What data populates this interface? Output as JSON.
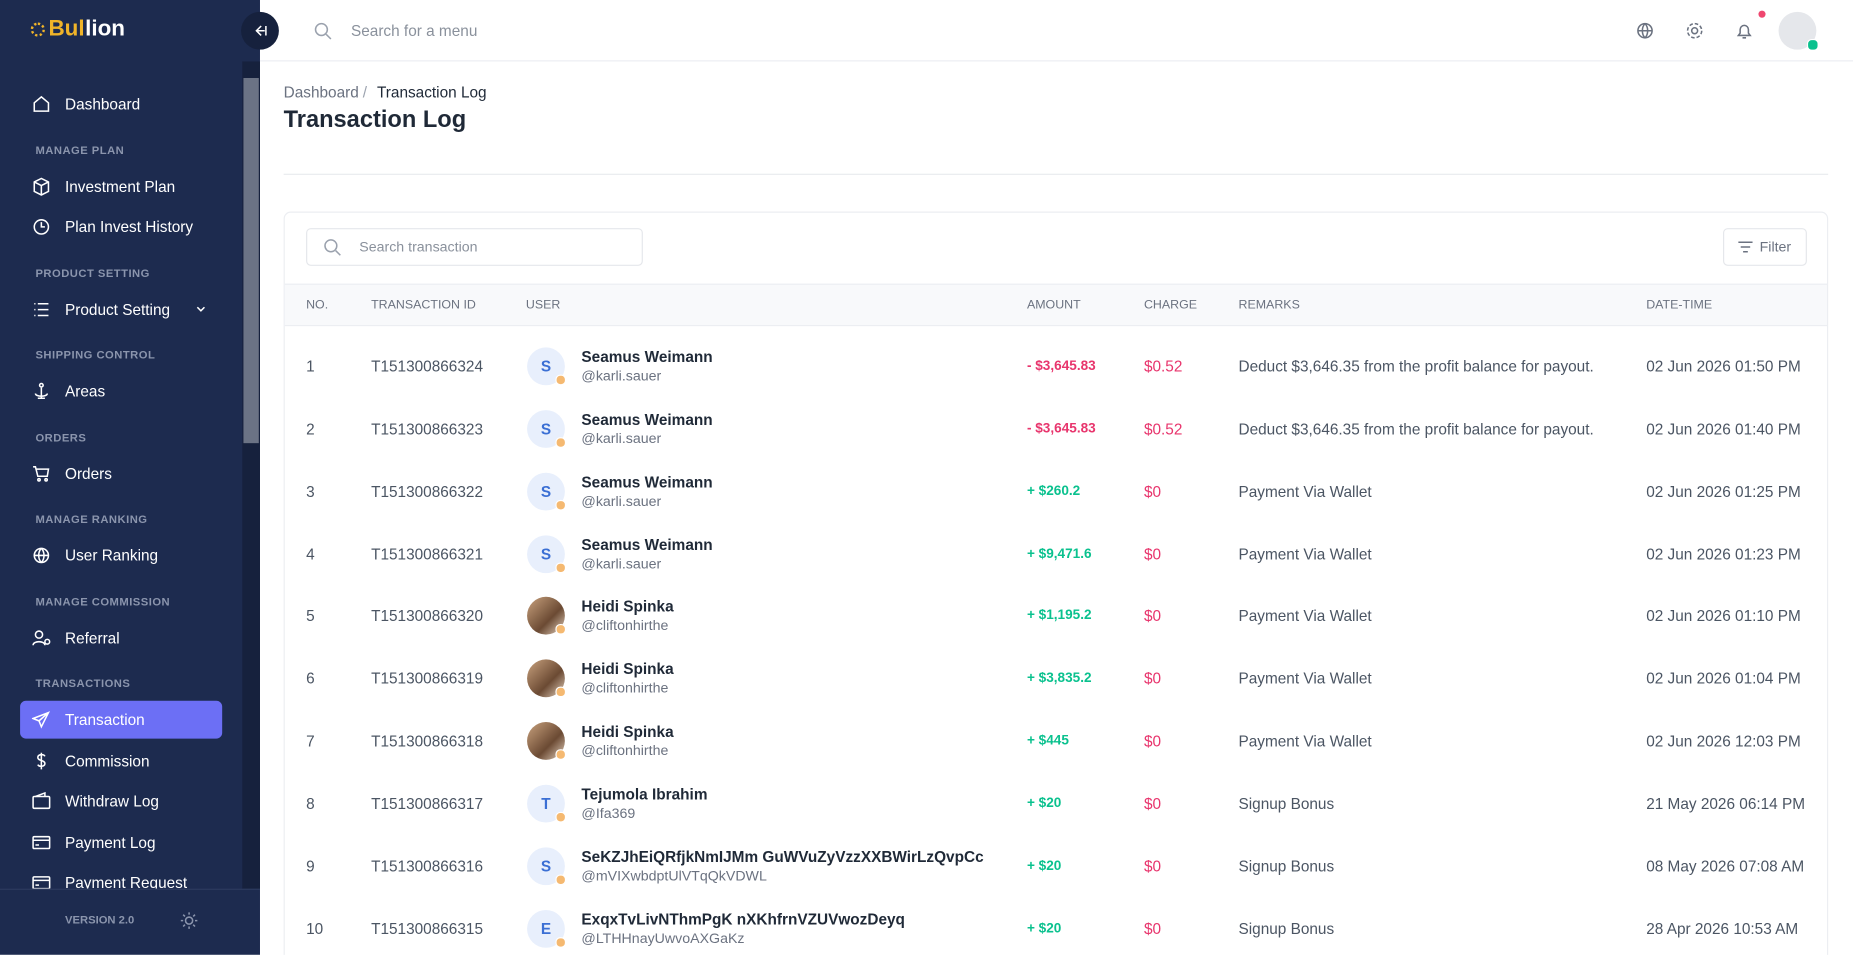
{
  "brand": {
    "gold": "Bul",
    "white": "lion"
  },
  "header": {
    "search": "Search for a menu"
  },
  "sidebar": {
    "entries": [
      {
        "label": "Dashboard"
      },
      {
        "heading": "MANAGE PLAN"
      },
      {
        "label": "Investment Plan"
      },
      {
        "label": "Plan Invest History"
      },
      {
        "heading": "PRODUCT SETTING"
      },
      {
        "label": "Product Setting",
        "expandable": true
      },
      {
        "heading": "SHIPPING CONTROL"
      },
      {
        "label": "Areas"
      },
      {
        "heading": "ORDERS"
      },
      {
        "label": "Orders"
      },
      {
        "heading": "MANAGE RANKING"
      },
      {
        "label": "User Ranking"
      },
      {
        "heading": "MANAGE COMMISSION"
      },
      {
        "label": "Referral"
      },
      {
        "heading": "TRANSACTIONS"
      },
      {
        "label": "Transaction",
        "active": true
      },
      {
        "label": "Commission"
      },
      {
        "label": "Withdraw Log"
      },
      {
        "label": "Payment Log"
      },
      {
        "label": "Payment Request"
      }
    ],
    "version": "VERSION 2.0"
  },
  "breadcrumb": [
    "Dashboard",
    "Transaction Log"
  ],
  "page_title": "Transaction Log",
  "table": {
    "search": "Search transaction",
    "filter": "Filter",
    "columns": [
      "NO.",
      "TRANSACTION ID",
      "USER",
      "AMOUNT",
      "CHARGE",
      "REMARKS",
      "DATE-TIME"
    ],
    "rows": [
      {
        "no": 1,
        "id": "T151300866324",
        "avatar_letter": "S",
        "name": "Seamus Weimann",
        "username": "@karli.sauer",
        "amount": "- $3,645.83",
        "charge": "$0.52",
        "remarks": "Deduct $3,646.35 from the profit balance for payout.",
        "datetime": "02 Jun 2026 01:50 PM"
      },
      {
        "no": 2,
        "id": "T151300866323",
        "avatar_letter": "S",
        "name": "Seamus Weimann",
        "username": "@karli.sauer",
        "amount": "- $3,645.83",
        "charge": "$0.52",
        "remarks": "Deduct $3,646.35 from the profit balance for payout.",
        "datetime": "02 Jun 2026 01:40 PM"
      },
      {
        "no": 3,
        "id": "T151300866322",
        "avatar_letter": "S",
        "name": "Seamus Weimann",
        "username": "@karli.sauer",
        "amount": "+ $260.2",
        "charge": "$0",
        "remarks": "Payment Via Wallet",
        "datetime": "02 Jun 2026 01:25 PM"
      },
      {
        "no": 4,
        "id": "T151300866321",
        "avatar_letter": "S",
        "name": "Seamus Weimann",
        "username": "@karli.sauer",
        "amount": "+ $9,471.6",
        "charge": "$0",
        "remarks": "Payment Via Wallet",
        "datetime": "02 Jun 2026 01:23 PM"
      },
      {
        "no": 5,
        "id": "T151300866320",
        "avatar_photo": true,
        "name": "Heidi Spinka",
        "username": "@cliftonhirthe",
        "amount": "+ $1,195.2",
        "charge": "$0",
        "remarks": "Payment Via Wallet",
        "datetime": "02 Jun 2026 01:10 PM"
      },
      {
        "no": 6,
        "id": "T151300866319",
        "avatar_photo": true,
        "name": "Heidi Spinka",
        "username": "@cliftonhirthe",
        "amount": "+ $3,835.2",
        "charge": "$0",
        "remarks": "Payment Via Wallet",
        "datetime": "02 Jun 2026 01:04 PM"
      },
      {
        "no": 7,
        "id": "T151300866318",
        "avatar_photo": true,
        "name": "Heidi Spinka",
        "username": "@cliftonhirthe",
        "amount": "+ $445",
        "charge": "$0",
        "remarks": "Payment Via Wallet",
        "datetime": "02 Jun 2026 12:03 PM"
      },
      {
        "no": 8,
        "id": "T151300866317",
        "avatar_letter": "T",
        "name": "Tejumola Ibrahim",
        "username": "@Ifa369",
        "amount": "+ $20",
        "charge": "$0",
        "remarks": "Signup Bonus",
        "datetime": "21 May 2026 06:14 PM"
      },
      {
        "no": 9,
        "id": "T151300866316",
        "avatar_letter": "S",
        "name": "SeKZJhEiQRfjkNmIJMm GuWVuZyVzzXXBWirLzQvpCc",
        "username": "@mVIXwbdptUlVTqQkVDWL",
        "amount": "+ $20",
        "charge": "$0",
        "remarks": "Signup Bonus",
        "datetime": "08 May 2026 07:08 AM"
      },
      {
        "no": 10,
        "id": "T151300866315",
        "avatar_letter": "E",
        "name": "ExqxTvLivNThmPgK nXKhfrnVZUVwozDeyq",
        "username": "@LTHHnayUwvoAXGaKz",
        "amount": "+ $20",
        "charge": "$0",
        "remarks": "Signup Bonus",
        "datetime": "28 Apr 2026 10:53 AM"
      }
    ]
  }
}
